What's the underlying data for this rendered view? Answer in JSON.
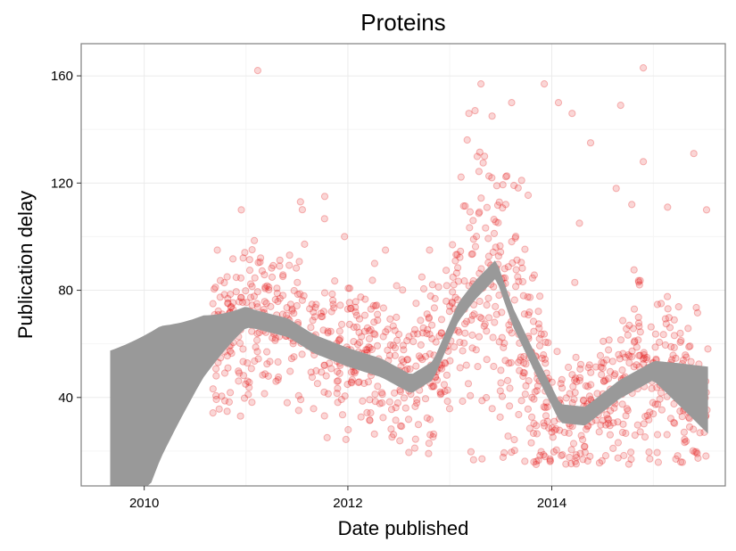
{
  "chart_data": {
    "type": "scatter",
    "title": "Proteins",
    "xlabel": "Date published",
    "ylabel": "Publication delay",
    "xlim": [
      "2009-05-20",
      "2015-09-15"
    ],
    "ylim": [
      7,
      172
    ],
    "x_ticks": [
      {
        "label": "2010",
        "value": "2010-01-01"
      },
      {
        "label": "2012",
        "value": "2012-01-01"
      },
      {
        "label": "2014",
        "value": "2014-01-01"
      }
    ],
    "y_ticks": [
      40,
      80,
      120,
      160
    ],
    "grid": true,
    "point_color": "#e41a1c",
    "point_opacity": 0.18,
    "band_color": "#999999",
    "point_count": 1200,
    "points": [
      [
        "2009-09-15",
        16
      ],
      [
        "2011-02-12",
        162
      ],
      [
        "2014-11-25",
        163
      ],
      [
        "2013-03-10",
        146
      ],
      [
        "2013-04-22",
        157
      ],
      [
        "2013-06-01",
        145
      ],
      [
        "2013-08-10",
        150
      ],
      [
        "2013-09-15",
        121
      ],
      [
        "2013-12-05",
        157
      ],
      [
        "2014-01-25",
        150
      ],
      [
        "2014-03-15",
        146
      ],
      [
        "2014-05-20",
        135
      ],
      [
        "2014-09-05",
        149
      ],
      [
        "2014-11-25",
        128
      ],
      [
        "2015-05-25",
        131
      ],
      [
        "2015-07-10",
        110
      ],
      [
        "2013-03-25",
        106
      ],
      [
        "2013-05-05",
        130
      ],
      [
        "2013-06-18",
        119
      ],
      [
        "2011-07-15",
        113
      ],
      [
        "2011-10-10",
        115
      ],
      [
        "2010-09-20",
        95
      ],
      [
        "2010-12-15",
        110
      ],
      [
        "2011-12-20",
        100
      ],
      [
        "2012-05-15",
        95
      ],
      [
        "2012-10-20",
        95
      ],
      [
        "2013-01-10",
        97
      ],
      [
        "2013-07-20",
        112
      ],
      [
        "2014-04-10",
        105
      ],
      [
        "2014-08-20",
        118
      ],
      [
        "2014-10-15",
        112
      ],
      [
        "2015-02-20",
        111
      ]
    ],
    "bands": [
      {
        "name": "",
        "x": [
          "2009-09-01",
          "2010-03-01",
          "2010-08-01",
          "2011-01-01",
          "2011-06-01",
          "2011-09-01",
          "2012-01-01",
          "2012-05-01",
          "2012-08-15",
          "2012-11-01",
          "2013-02-01",
          "2013-04-01",
          "2013-06-15",
          "2013-08-15",
          "2013-11-01",
          "2014-02-01",
          "2014-05-01",
          "2014-09-01",
          "2015-01-01",
          "2015-04-01",
          "2015-07-15"
        ],
        "y": [
          12,
          42,
          59,
          70,
          66,
          60,
          55,
          51,
          45,
          50,
          72,
          80,
          88,
          70,
          53,
          34,
          33,
          43,
          50,
          45,
          39
        ]
      }
    ]
  }
}
